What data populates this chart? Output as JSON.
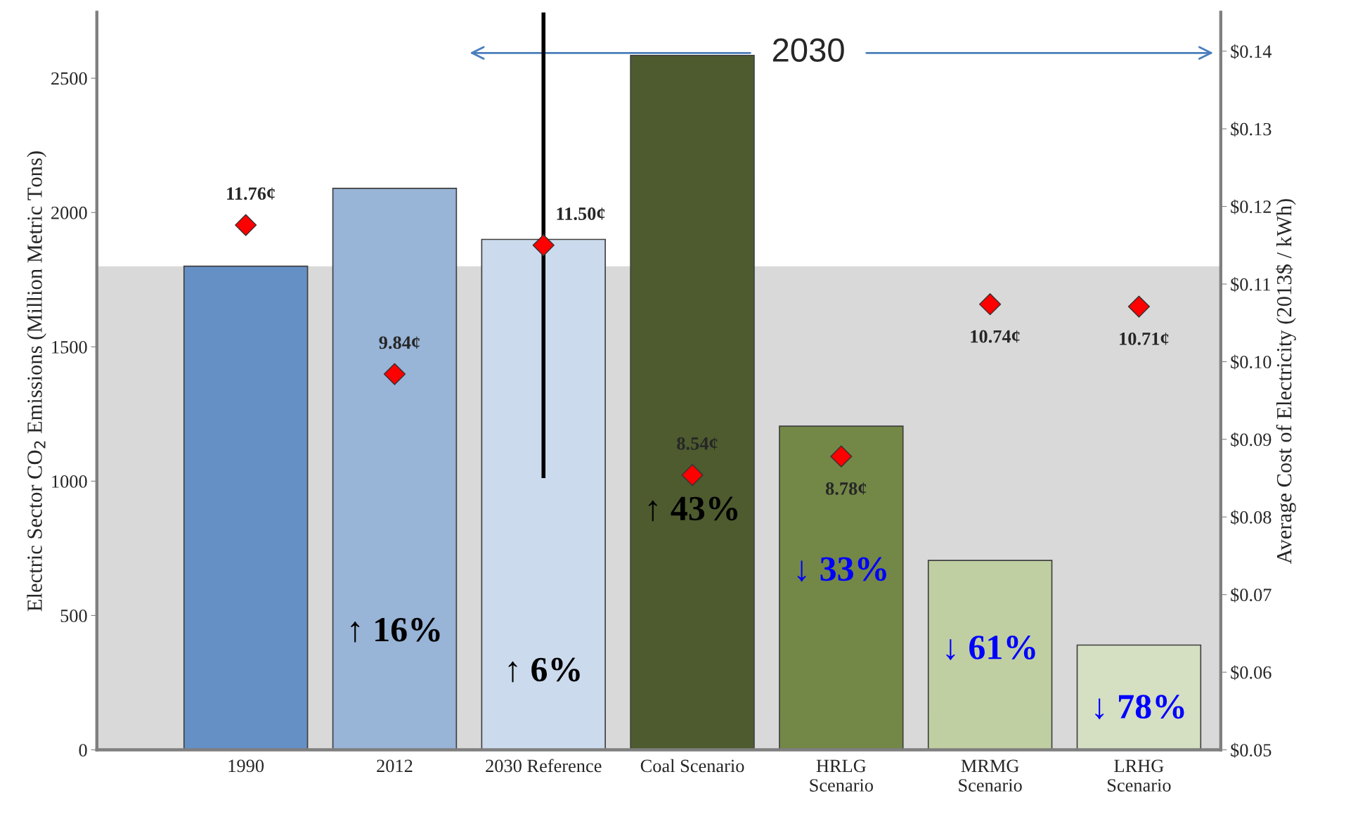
{
  "chart_data": {
    "type": "bar",
    "ylabel": "Electric Sector CO$_{2}$ Emissions (Million Metric Tons)",
    "y2label": "Average Cost of Electricity (2013$ / kWh)",
    "categories": [
      "1990",
      "2012",
      "2030 Reference",
      "Coal Scenario",
      "HRLG\nScenario",
      "MRMG\nScenario",
      "LRHG\nScenario"
    ],
    "series": [
      {
        "colors": [
          "#558ed5",
          "#8db3e2",
          "#c6d9f1",
          "#4f6228",
          "#77933c",
          "#c3d69b",
          "#d7e4bd"
        ],
        "values": [
          1800,
          2090,
          1900,
          2585,
          1205,
          705,
          390
        ]
      },
      {
        "type": "scatter",
        "axis": "y2",
        "color": "#ff0000",
        "values": [
          0.1176,
          0.0984,
          0.115,
          0.0854,
          0.0878,
          0.1074,
          0.1071
        ],
        "errors": [
          null,
          null,
          [
            0.085,
            0.145
          ],
          null,
          null,
          null,
          null
        ]
      }
    ],
    "ylim": [
      0,
      2745
    ],
    "yticks": [
      0,
      500,
      1000,
      1500,
      2000,
      2500
    ],
    "y2lim": [
      0.05,
      0.145
    ],
    "y2ticks": [
      {
        "value": 0.05,
        "label": "$0.05"
      },
      {
        "value": 0.06,
        "label": "$0.06"
      },
      {
        "value": 0.07,
        "label": "$0.07"
      },
      {
        "value": 0.08,
        "label": "$0.08"
      },
      {
        "value": 0.09,
        "label": "$0.09"
      },
      {
        "value": 0.1,
        "label": "$0.10"
      },
      {
        "value": 0.11,
        "label": "$0.11"
      },
      {
        "value": 0.12,
        "label": "$0.12"
      },
      {
        "value": 0.13,
        "label": "$0.13"
      },
      {
        "value": 0.14,
        "label": "$0.14"
      }
    ],
    "bands": [
      {
        "axis": "y",
        "from": 0,
        "to": 1800,
        "color": "#d9d9d9"
      }
    ],
    "marker": "diamond",
    "grid": false,
    "annotations": [
      "2030",
      "11.76¢",
      "9.84¢",
      "11.50¢",
      "8.54¢",
      "8.78¢",
      "10.74¢",
      "10.71¢",
      "↑ 16%",
      "↑ 6%",
      "↑ 43%",
      "↓ 33%",
      "↓ 61%",
      "↓ 78%"
    ]
  }
}
